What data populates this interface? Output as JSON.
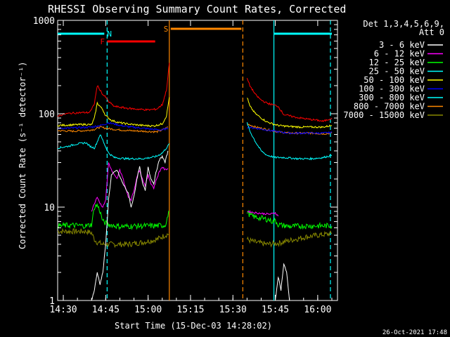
{
  "chart_data": {
    "type": "line",
    "title": "RHESSI Observing Summary Count Rates, Corrected",
    "xlabel": "Start Time (15-Dec-03 14:28:02)",
    "ylabel": "Corrected Count Rate (s⁻¹ detector⁻¹)",
    "yscale": "log",
    "ylim": [
      1,
      1000
    ],
    "xlim_minutes_after_1428": [
      0,
      99
    ],
    "x_ticks": [
      {
        "label": "14:30",
        "minutes": 2
      },
      {
        "label": "14:45",
        "minutes": 17
      },
      {
        "label": "15:00",
        "minutes": 32
      },
      {
        "label": "15:15",
        "minutes": 47
      },
      {
        "label": "15:30",
        "minutes": 62
      },
      {
        "label": "15:45",
        "minutes": 77
      },
      {
        "label": "16:00",
        "minutes": 92
      }
    ],
    "y_ticks": [
      {
        "label": "1",
        "value": 1
      },
      {
        "label": "10",
        "value": 10
      },
      {
        "label": "100",
        "value": 100
      },
      {
        "label": "1000",
        "value": 1000
      }
    ],
    "legend_header": [
      "Det 1,3,4,5,6,9,",
      "Att 0"
    ],
    "legend_placement": "right",
    "footer_date": "26-Oct-2021 17:48",
    "flags": [
      {
        "label": "N",
        "color": "#00ffff",
        "segments": [
          [
            0,
            16.5
          ],
          [
            76.5,
            97
          ]
        ]
      },
      {
        "label": "F",
        "color": "#ff0000",
        "segments": [
          [
            17.5,
            34.5
          ]
        ]
      },
      {
        "label": "S",
        "color": "#ff8800",
        "segments": [
          [
            40,
            65
          ]
        ]
      }
    ],
    "markers": [
      {
        "minutes": 17.5,
        "color": "#00ffff",
        "style": "dashed"
      },
      {
        "minutes": 39.5,
        "color": "#ff8800",
        "style": "solid"
      },
      {
        "minutes": 65.5,
        "color": "#ff8800",
        "style": "dashed"
      },
      {
        "minutes": 76.5,
        "color": "#00ffff",
        "style": "solid"
      },
      {
        "minutes": 96.5,
        "color": "#00ffff",
        "style": "dashed"
      }
    ],
    "gap_minutes": [
      39.5,
      67
    ],
    "series": [
      {
        "name": "3 - 6 keV",
        "color": "#ffffff",
        "segments": [
          [
            [
              12,
              1
            ],
            [
              13,
              1.3
            ],
            [
              14,
              2
            ],
            [
              15,
              1.5
            ],
            [
              16,
              2
            ],
            [
              17,
              4
            ],
            [
              18,
              12
            ],
            [
              19,
              22
            ],
            [
              21,
              25
            ],
            [
              23,
              18
            ],
            [
              25,
              14
            ],
            [
              26,
              10
            ],
            [
              27,
              13
            ],
            [
              28,
              20
            ],
            [
              29,
              27
            ],
            [
              30,
              18
            ],
            [
              31,
              15
            ],
            [
              32,
              27
            ],
            [
              33,
              20
            ],
            [
              34,
              18
            ],
            [
              35,
              25
            ],
            [
              36,
              32
            ],
            [
              37,
              35
            ],
            [
              38,
              30
            ],
            [
              39,
              40
            ]
          ],
          [
            [
              77,
              1
            ],
            [
              78,
              1.8
            ],
            [
              79,
              1.3
            ],
            [
              80,
              2.5
            ],
            [
              81,
              2
            ],
            [
              82,
              1
            ]
          ]
        ]
      },
      {
        "name": "6 - 12 keV",
        "color": "#ff00ff",
        "segments": [
          [
            [
              12,
              9
            ],
            [
              13,
              11
            ],
            [
              14,
              13
            ],
            [
              15,
              11
            ],
            [
              16,
              10
            ],
            [
              17,
              12
            ],
            [
              18,
              30
            ],
            [
              19,
              25
            ],
            [
              20,
              22
            ],
            [
              21,
              20
            ],
            [
              22,
              25
            ],
            [
              23,
              21
            ],
            [
              24,
              16
            ],
            [
              25,
              13
            ],
            [
              26,
              12
            ],
            [
              27,
              15
            ],
            [
              28,
              21
            ],
            [
              29,
              25
            ],
            [
              30,
              20
            ],
            [
              31,
              17
            ],
            [
              32,
              22
            ],
            [
              33,
              18
            ],
            [
              34,
              16
            ],
            [
              35,
              20
            ],
            [
              36,
              24
            ],
            [
              37,
              27
            ],
            [
              38,
              25
            ],
            [
              39,
              26
            ]
          ],
          [
            [
              67,
              9
            ],
            [
              70,
              8.7
            ],
            [
              73,
              8.5
            ],
            [
              75,
              8.4
            ],
            [
              76,
              8.5
            ],
            [
              77,
              8.7
            ],
            [
              78,
              8
            ]
          ]
        ]
      },
      {
        "name": "12 - 25 keV",
        "color": "#00ff00",
        "segments": [
          [
            [
              0,
              6.3
            ],
            [
              5,
              6.4
            ],
            [
              10,
              6.3
            ],
            [
              12,
              6.5
            ],
            [
              13,
              10
            ],
            [
              14,
              10.5
            ],
            [
              15,
              9
            ],
            [
              16,
              7
            ],
            [
              18,
              6.5
            ],
            [
              22,
              6.2
            ],
            [
              30,
              6.3
            ],
            [
              35,
              6.3
            ],
            [
              38,
              6.4
            ],
            [
              39.5,
              9
            ]
          ],
          [
            [
              67,
              9
            ],
            [
              68,
              8.2
            ],
            [
              70,
              7.8
            ],
            [
              73,
              7.5
            ],
            [
              75,
              7.3
            ],
            [
              76,
              7
            ],
            [
              77,
              7.2
            ],
            [
              78,
              6.5
            ],
            [
              82,
              6.2
            ],
            [
              88,
              6.3
            ],
            [
              92,
              6.3
            ],
            [
              97,
              6.3
            ]
          ]
        ]
      },
      {
        "name": "25 - 50 keV",
        "color": "#00ffff",
        "segments": [
          [
            [
              0,
              43
            ],
            [
              2,
              44
            ],
            [
              4,
              45
            ],
            [
              6,
              47
            ],
            [
              8,
              48
            ],
            [
              10,
              49
            ],
            [
              11,
              46
            ],
            [
              12,
              44
            ],
            [
              13,
              43
            ],
            [
              14,
              50
            ],
            [
              15,
              60
            ],
            [
              16,
              52
            ],
            [
              17,
              44
            ],
            [
              18,
              38
            ],
            [
              20,
              34
            ],
            [
              24,
              33
            ],
            [
              30,
              33
            ],
            [
              33,
              34
            ],
            [
              35,
              35
            ],
            [
              37,
              38
            ],
            [
              39,
              45
            ],
            [
              39.5,
              48
            ]
          ],
          [
            [
              67,
              80
            ],
            [
              68,
              65
            ],
            [
              70,
              50
            ],
            [
              72,
              40
            ],
            [
              74,
              36
            ],
            [
              77,
              34
            ],
            [
              80,
              34
            ],
            [
              85,
              33
            ],
            [
              90,
              33
            ],
            [
              94,
              34
            ],
            [
              97,
              36
            ]
          ]
        ]
      },
      {
        "name": "50 - 100 keV",
        "color": "#ffff00",
        "segments": [
          [
            [
              0,
              75
            ],
            [
              5,
              76
            ],
            [
              10,
              77
            ],
            [
              12,
              76
            ],
            [
              13,
              90
            ],
            [
              14,
              130
            ],
            [
              15,
              120
            ],
            [
              16,
              110
            ],
            [
              17,
              95
            ],
            [
              19,
              85
            ],
            [
              22,
              80
            ],
            [
              26,
              77
            ],
            [
              30,
              75
            ],
            [
              34,
              74
            ],
            [
              37,
              78
            ],
            [
              38.5,
              95
            ],
            [
              39.5,
              150
            ]
          ],
          [
            [
              67,
              150
            ],
            [
              68,
              120
            ],
            [
              70,
              100
            ],
            [
              72,
              90
            ],
            [
              74,
              82
            ],
            [
              76,
              78
            ],
            [
              78,
              75
            ],
            [
              82,
              73
            ],
            [
              86,
              72
            ],
            [
              90,
              72
            ],
            [
              94,
              72
            ],
            [
              97,
              75
            ]
          ]
        ]
      },
      {
        "name": "100 - 300 keV",
        "color": "#0000ff",
        "segments": [
          [
            [
              0,
              70
            ],
            [
              4,
              70
            ],
            [
              8,
              71
            ],
            [
              12,
              72
            ],
            [
              14,
              74
            ],
            [
              16,
              76
            ],
            [
              18,
              80
            ],
            [
              20,
              78
            ],
            [
              22,
              75
            ],
            [
              26,
              72
            ],
            [
              30,
              70
            ],
            [
              34,
              68
            ],
            [
              37,
              67
            ],
            [
              39,
              70
            ]
          ],
          [
            [
              67,
              72
            ],
            [
              70,
              70
            ],
            [
              74,
              67
            ],
            [
              78,
              64
            ],
            [
              82,
              62
            ],
            [
              86,
              62
            ],
            [
              90,
              62
            ],
            [
              94,
              62
            ],
            [
              97,
              63
            ]
          ]
        ]
      },
      {
        "name": "300 - 800 keV",
        "color": "#00ffff",
        "segments": []
      },
      {
        "name": "800 - 7000 keV",
        "color": "#ff8800",
        "segments": [
          [
            [
              0,
              66
            ],
            [
              5,
              65
            ],
            [
              10,
              66
            ],
            [
              13,
              68
            ],
            [
              15,
              72
            ],
            [
              17,
              70
            ],
            [
              20,
              68
            ],
            [
              25,
              66
            ],
            [
              30,
              65
            ],
            [
              35,
              64
            ],
            [
              37,
              67
            ],
            [
              39,
              72
            ]
          ],
          [
            [
              67,
              78
            ],
            [
              70,
              72
            ],
            [
              74,
              68
            ],
            [
              78,
              64
            ],
            [
              82,
              62
            ],
            [
              86,
              62
            ],
            [
              90,
              62
            ],
            [
              94,
              61
            ],
            [
              97,
              62
            ]
          ]
        ]
      },
      {
        "name": "7000 - 15000 keV",
        "color": "#888800",
        "segments": [
          [
            [
              0,
              5.5
            ],
            [
              5,
              5.5
            ],
            [
              10,
              5.5
            ],
            [
              12,
              5.3
            ],
            [
              13,
              4.5
            ],
            [
              14,
              4.2
            ],
            [
              16,
              4
            ],
            [
              20,
              4
            ],
            [
              25,
              4
            ],
            [
              30,
              4.2
            ],
            [
              35,
              4.5
            ],
            [
              38,
              5
            ],
            [
              39.5,
              5.2
            ]
          ],
          [
            [
              67,
              4.5
            ],
            [
              70,
              4.2
            ],
            [
              74,
              4
            ],
            [
              78,
              4.1
            ],
            [
              82,
              4.4
            ],
            [
              88,
              4.8
            ],
            [
              92,
              5
            ],
            [
              97,
              5.2
            ]
          ]
        ]
      }
    ],
    "red_top": {
      "name": "100 - 300 keV overlay",
      "color": "#ff0000",
      "segments": [
        [
          [
            0,
            95
          ],
          [
            3,
            100
          ],
          [
            6,
            102
          ],
          [
            9,
            103
          ],
          [
            11,
            103
          ],
          [
            12,
            110
          ],
          [
            13,
            130
          ],
          [
            14,
            200
          ],
          [
            15,
            180
          ],
          [
            16,
            160
          ],
          [
            17,
            150
          ],
          [
            18,
            135
          ],
          [
            20,
            120
          ],
          [
            24,
            115
          ],
          [
            28,
            112
          ],
          [
            32,
            110
          ],
          [
            35,
            112
          ],
          [
            37,
            125
          ],
          [
            38.5,
            180
          ],
          [
            39,
            250
          ],
          [
            39.5,
            350
          ]
        ],
        [
          [
            67,
            240
          ],
          [
            68,
            200
          ],
          [
            70,
            160
          ],
          [
            72,
            140
          ],
          [
            74,
            130
          ],
          [
            76,
            125
          ],
          [
            78,
            120
          ],
          [
            80,
            98
          ],
          [
            84,
            92
          ],
          [
            88,
            88
          ],
          [
            92,
            85
          ],
          [
            94,
            83
          ],
          [
            97,
            90
          ]
        ]
      ]
    }
  }
}
